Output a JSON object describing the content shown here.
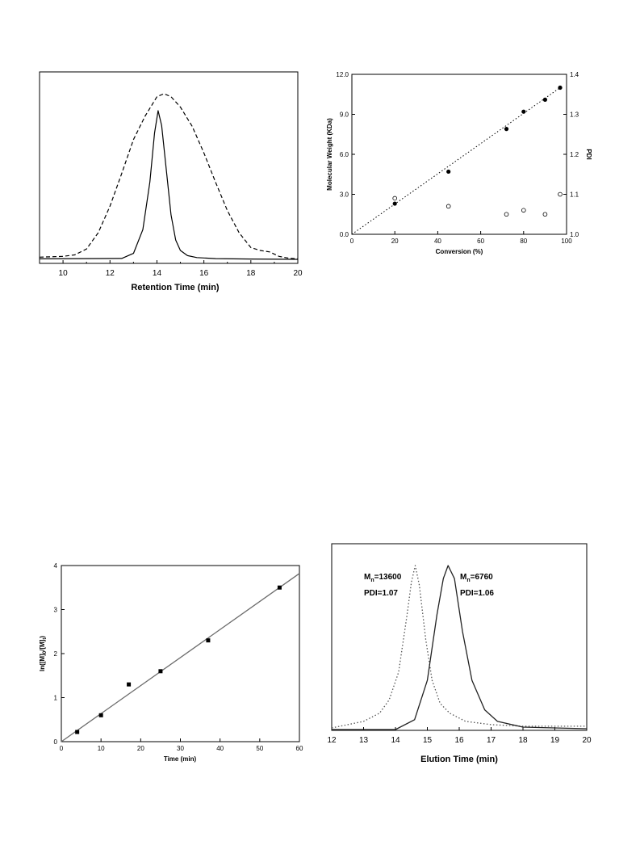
{
  "chart_data": [
    {
      "id": "chart-a",
      "type": "line",
      "title": "",
      "xlabel": "Retention Time (min)",
      "ylabel": "",
      "xlim": [
        9,
        20
      ],
      "ylim": [
        0,
        1.1
      ],
      "xticks": [
        10,
        12,
        14,
        16,
        18,
        20
      ],
      "yticks": [],
      "grid": false,
      "series": [
        {
          "style": "solid",
          "x": [
            9.0,
            12.5,
            13.0,
            13.4,
            13.7,
            13.9,
            14.05,
            14.2,
            14.4,
            14.6,
            14.8,
            15.0,
            15.3,
            15.7,
            16.5,
            18.0,
            20.0
          ],
          "y": [
            0.003,
            0.006,
            0.04,
            0.2,
            0.52,
            0.85,
            1.0,
            0.9,
            0.6,
            0.3,
            0.13,
            0.06,
            0.025,
            0.012,
            0.005,
            0.002,
            0.0
          ]
        },
        {
          "style": "dashed",
          "x": [
            9.0,
            10.0,
            10.5,
            11.0,
            11.5,
            12.0,
            12.5,
            13.0,
            13.5,
            14.0,
            14.3,
            14.6,
            15.0,
            15.5,
            16.0,
            16.5,
            17.0,
            17.5,
            18.0,
            18.4,
            18.8,
            19.2,
            19.6,
            20.0
          ],
          "y": [
            0.015,
            0.02,
            0.03,
            0.07,
            0.18,
            0.36,
            0.58,
            0.81,
            0.97,
            1.1,
            1.12,
            1.1,
            1.03,
            0.9,
            0.72,
            0.52,
            0.33,
            0.18,
            0.08,
            0.06,
            0.05,
            0.02,
            0.008,
            0.004
          ]
        }
      ]
    },
    {
      "id": "chart-b",
      "type": "scatter",
      "title": "",
      "xlabel": "Conversion (%)",
      "ylabel": "Molecular Weight (KDa)",
      "y2label": "PDI",
      "xlim": [
        0,
        100
      ],
      "ylim": [
        0,
        12
      ],
      "y2lim": [
        1.0,
        1.4
      ],
      "xticks": [
        0,
        20,
        40,
        60,
        80,
        100
      ],
      "yticks": [
        0.0,
        3.0,
        6.0,
        9.0,
        12.0
      ],
      "ytick_labels": [
        "0.0",
        "3.0",
        "6.0",
        "9.0",
        "12.0"
      ],
      "y2ticks": [
        1.0,
        1.1,
        1.2,
        1.3,
        1.4
      ],
      "y2tick_labels": [
        "1.0",
        "1.1",
        "1.2",
        "1.3",
        "1.4"
      ],
      "grid": false,
      "series": [
        {
          "marker": "filled-circle",
          "axis": "left",
          "x": [
            20,
            45,
            72,
            80,
            90,
            97
          ],
          "y": [
            2.3,
            4.7,
            7.9,
            9.2,
            10.1,
            11.0
          ]
        },
        {
          "marker": "open-circle",
          "axis": "right",
          "x": [
            20,
            45,
            72,
            80,
            90,
            97
          ],
          "y": [
            1.09,
            1.07,
            1.05,
            1.06,
            1.05,
            1.1
          ]
        },
        {
          "style": "dotted-fit",
          "axis": "left",
          "x": [
            0,
            97
          ],
          "y": [
            0,
            11.0
          ]
        }
      ]
    },
    {
      "id": "chart-c",
      "type": "scatter",
      "title": "",
      "xlabel": "Time (min)",
      "ylabel": "ln([M]0/[M]t)",
      "xlim": [
        0,
        60
      ],
      "ylim": [
        0,
        4
      ],
      "xticks": [
        0,
        10,
        20,
        30,
        40,
        50,
        60
      ],
      "yticks": [
        0,
        1,
        2,
        3,
        4
      ],
      "grid": false,
      "series": [
        {
          "marker": "filled-square",
          "x": [
            4,
            10,
            17,
            25,
            37,
            55
          ],
          "y": [
            0.22,
            0.6,
            1.3,
            1.6,
            2.3,
            3.5
          ]
        },
        {
          "style": "fit-line",
          "x": [
            0,
            60
          ],
          "y": [
            0,
            3.82
          ]
        }
      ]
    },
    {
      "id": "chart-d",
      "type": "line",
      "title": "",
      "xlabel": "Elution Time (min)",
      "ylabel": "",
      "xlim": [
        12,
        20
      ],
      "ylim": [
        0,
        1.0
      ],
      "xticks": [
        12,
        13,
        14,
        15,
        16,
        17,
        18,
        19,
        20
      ],
      "yticks": [],
      "grid": false,
      "series": [
        {
          "style": "dotted",
          "x": [
            12.0,
            13.0,
            13.5,
            13.8,
            14.1,
            14.35,
            14.5,
            14.62,
            14.75,
            14.95,
            15.15,
            15.4,
            15.7,
            16.2,
            17.0,
            18.0,
            20.0
          ],
          "y": [
            0.01,
            0.05,
            0.1,
            0.18,
            0.35,
            0.68,
            0.9,
            1.0,
            0.88,
            0.55,
            0.3,
            0.16,
            0.1,
            0.05,
            0.03,
            0.02,
            0.02
          ]
        },
        {
          "style": "solid",
          "x": [
            12.0,
            14.0,
            14.6,
            15.0,
            15.3,
            15.5,
            15.65,
            15.85,
            16.1,
            16.4,
            16.8,
            17.2,
            18.0,
            20.0
          ],
          "y": [
            0.0,
            0.0,
            0.06,
            0.3,
            0.7,
            0.92,
            1.0,
            0.92,
            0.6,
            0.3,
            0.12,
            0.05,
            0.015,
            0.005
          ]
        }
      ],
      "annotations": [
        {
          "mn_base": "M",
          "mn_sub": "n",
          "mn_value": "=13600",
          "pdi": "PDI=1.07"
        },
        {
          "mn_base": "M",
          "mn_sub": "n",
          "mn_value": "=6760",
          "pdi": "PDI=1.06"
        }
      ]
    }
  ]
}
